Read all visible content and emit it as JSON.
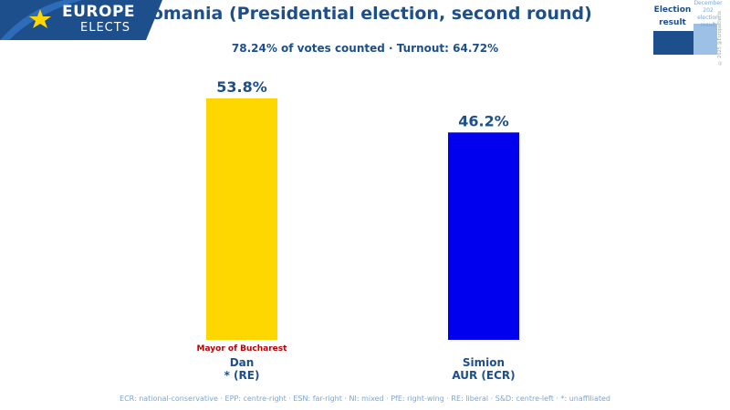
{
  "logo": {
    "line1": "EUROPE",
    "line2": "ELECTS"
  },
  "badge": {
    "main_line1": "Election",
    "main_line2": "result",
    "sub_line1": "December 202",
    "sub_line2": "election",
    "sub_line3": "result",
    "side": "© 2025 @EuropeElects"
  },
  "colors": {
    "brand": "#1d4f8c",
    "dan": "#ffd700",
    "simion": "#0000ee",
    "note": "#c00000"
  },
  "chart_data": {
    "type": "bar",
    "title": "Romania (Presidential election, second round)",
    "subtitle": "78.24% of votes counted · Turnout: 64.72%",
    "categories": [
      "Dan",
      "Simion"
    ],
    "values": [
      53.8,
      46.2
    ],
    "value_labels": [
      "53.8%",
      "46.2%"
    ],
    "party_labels": [
      "* (RE)",
      "AUR (ECR)"
    ],
    "notes": [
      "Mayor of Bucharest",
      ""
    ],
    "bar_colors": [
      "#ffd700",
      "#0000ee"
    ],
    "ylim": [
      0,
      55
    ],
    "grid": false,
    "legend": "none"
  },
  "footer": "ECR: national-conservative · EPP: centre-right · ESN: far-right · NI: mixed · PfE: right-wing · RE: liberal · S&D: centre-left · *: unaffiliated"
}
